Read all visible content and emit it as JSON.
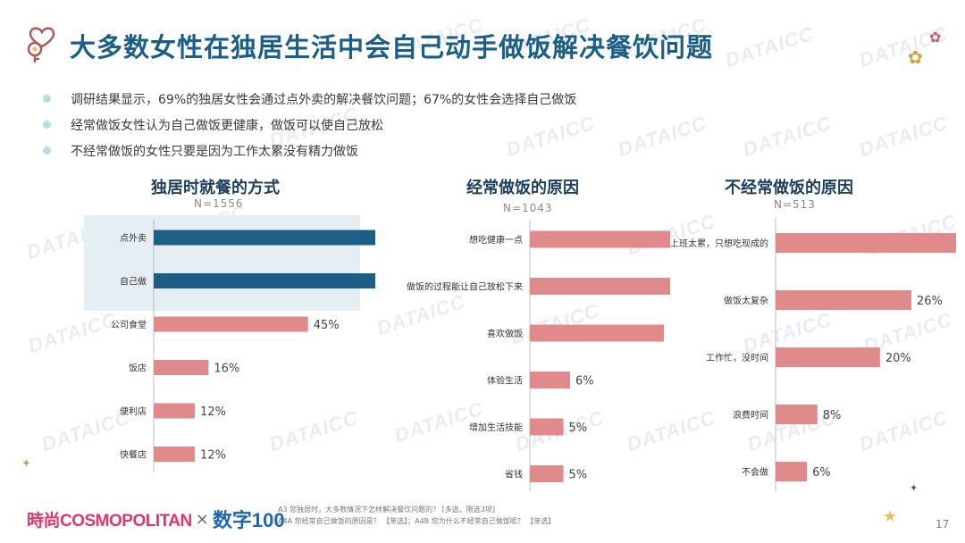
{
  "title": "大多数女性在独居生活中会自己动手做饭解决餐饮问题",
  "bullets": [
    "调研结果显示，69%的独居女性会通过点外卖的解决餐饮问题；67%的女性会选择自己做饭",
    "经常做饭女性认为自己做饭更健康，做饭可以使自己放松",
    "不经常做饭的女性只要是因为工作太累没有精力做饭"
  ],
  "watermark": "DATAICC",
  "chart_data": [
    {
      "type": "bar",
      "orientation": "horizontal",
      "title": "独居时就餐的方式",
      "note": "N=1556",
      "categories": [
        "点外卖",
        "自己做",
        "公司食堂",
        "饭店",
        "便利店",
        "快餐店"
      ],
      "values": [
        69,
        67,
        45,
        16,
        12,
        12
      ],
      "unit": "%",
      "xlim": [
        0,
        80
      ],
      "colors": [
        "#1b5f86",
        "#1b5f86",
        "#e08a8c",
        "#e08a8c",
        "#e08a8c",
        "#e08a8c"
      ],
      "highlighted": [
        "点外卖",
        "自己做"
      ]
    },
    {
      "type": "bar",
      "orientation": "horizontal",
      "title": "经常做饭的原因",
      "note": "N=1043",
      "categories": [
        "想吃健康一点",
        "做饭的过程能让自己放松下来",
        "喜欢做饭",
        "体验生活",
        "增加生活技能",
        "省钱"
      ],
      "values": [
        34,
        30,
        20,
        6,
        5,
        5
      ],
      "unit": "%",
      "xlim": [
        0,
        40
      ],
      "colors": [
        "#e08a8c",
        "#e08a8c",
        "#e08a8c",
        "#e08a8c",
        "#e08a8c",
        "#e08a8c"
      ]
    },
    {
      "type": "bar",
      "orientation": "horizontal",
      "title": "不经常做饭的原因",
      "note": "N=513",
      "categories": [
        "上班太累，只想吃现成的",
        "做饭太复杂",
        "工作忙，没时间",
        "浪费时间",
        "不会做"
      ],
      "values": [
        39,
        26,
        20,
        8,
        6
      ],
      "unit": "%",
      "xlim": [
        0,
        45
      ],
      "colors": [
        "#e08a8c",
        "#e08a8c",
        "#e08a8c",
        "#e08a8c",
        "#e08a8c"
      ]
    }
  ],
  "footer": {
    "brand_a": "時尚COSMOPOLITAN",
    "brand_x": "×",
    "brand_b": "数字100",
    "source_lines": [
      "A3 您独居时，大多数情况下怎样解决餐饮问题的？ [多选，限选3项]",
      "A4A 您经常自己做饭的原因是？ 【单选】；A4B 您为什么不经常自己做饭呢？ 【单选】"
    ],
    "page_number": "17"
  }
}
